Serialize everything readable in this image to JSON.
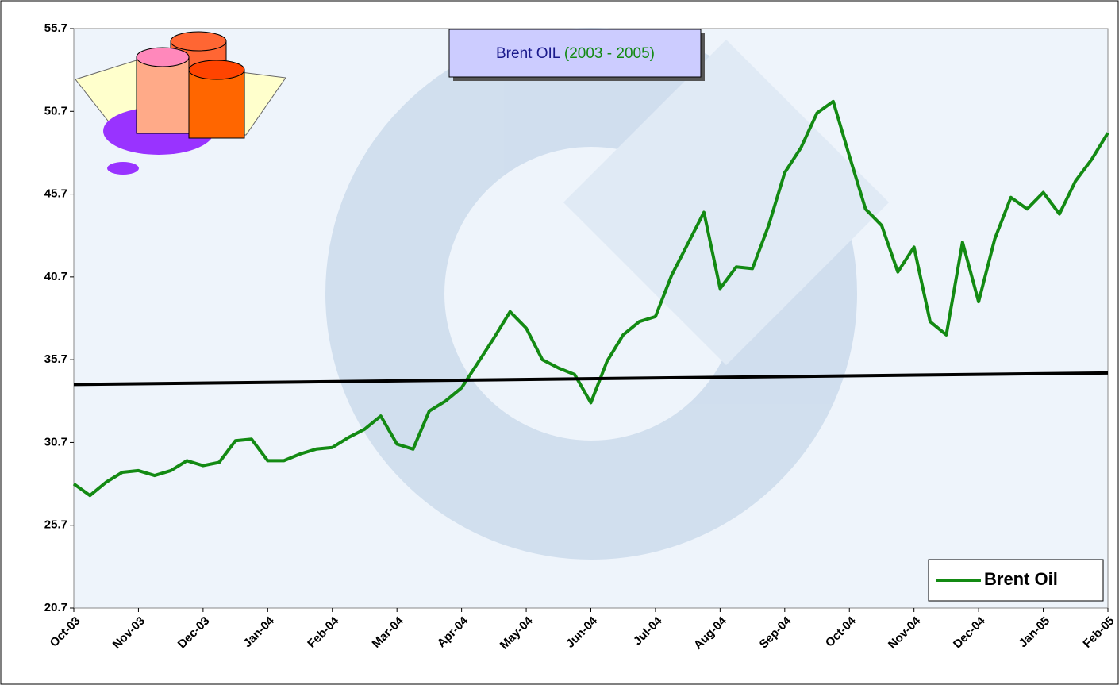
{
  "chart_data": {
    "type": "line",
    "title": "Brent OIL",
    "subtitle": "(2003 - 2005)",
    "categories": [
      "Oct-03",
      null,
      null,
      null,
      "Nov-03",
      null,
      null,
      null,
      "Dec-03",
      null,
      null,
      null,
      "Jan-04",
      null,
      null,
      null,
      "Feb-04",
      null,
      null,
      null,
      "Mar-04",
      null,
      null,
      null,
      "Apr-04",
      null,
      null,
      null,
      "May-04",
      null,
      null,
      null,
      "Jun-04",
      null,
      null,
      null,
      "Jul-04",
      null,
      null,
      null,
      "Aug-04",
      null,
      null,
      null,
      "Sep-04",
      null,
      null,
      null,
      "Oct-04",
      null,
      null,
      null,
      "Nov-04",
      null,
      null,
      null,
      "Dec-04",
      null,
      null,
      null,
      "Jan-05",
      null,
      null,
      null,
      "Feb-05"
    ],
    "series": [
      {
        "name": "Brent Oil",
        "color": "#138a13",
        "values": [
          28.2,
          27.5,
          28.3,
          28.9,
          29.0,
          28.7,
          29.0,
          29.6,
          29.3,
          29.5,
          30.8,
          30.9,
          29.6,
          29.6,
          30.0,
          30.3,
          30.4,
          31.0,
          31.5,
          32.3,
          30.6,
          30.3,
          32.6,
          33.2,
          34.0,
          35.5,
          37.0,
          38.6,
          37.6,
          35.7,
          35.2,
          34.8,
          33.1,
          35.6,
          37.2,
          38.0,
          38.3,
          40.8,
          42.7,
          44.6,
          40.0,
          41.3,
          41.2,
          43.8,
          47.0,
          48.5,
          50.6,
          51.3,
          48.0,
          44.8,
          43.8,
          41.0,
          42.5,
          38.0,
          37.2,
          42.8,
          39.2,
          43.0,
          45.5,
          44.8,
          45.8,
          44.5,
          46.5,
          47.8,
          49.4
        ]
      }
    ],
    "trend_line": {
      "values": [
        34.2,
        34.9
      ],
      "color": "#000000"
    },
    "ylim": [
      20.7,
      55.7
    ],
    "yticks": [
      20.7,
      25.7,
      30.7,
      35.7,
      40.7,
      45.7,
      50.7,
      55.7
    ],
    "legend": "bottom-right"
  }
}
